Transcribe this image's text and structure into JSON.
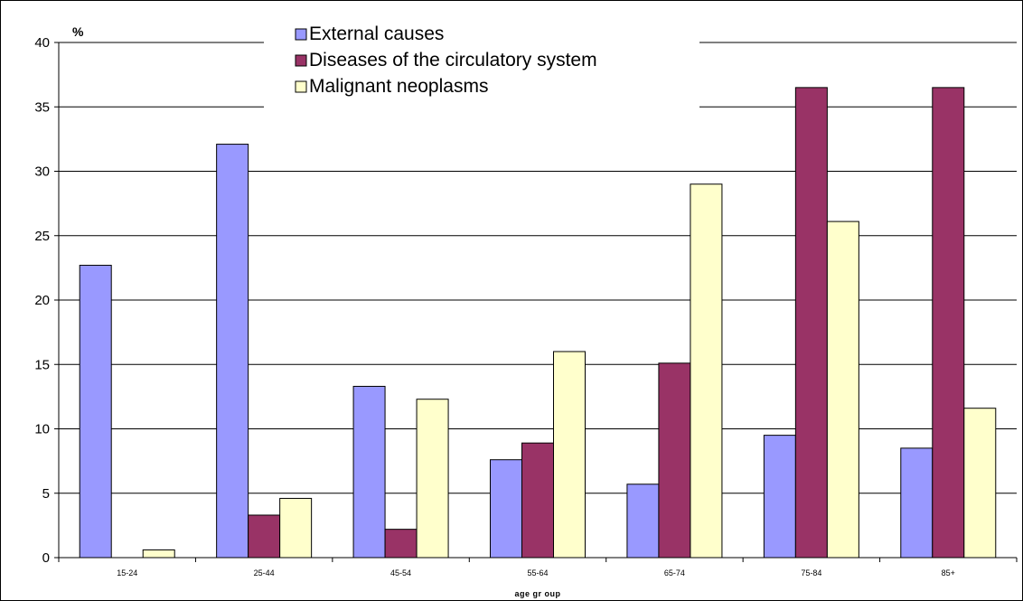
{
  "chart_data": {
    "type": "bar",
    "title": "",
    "ylabel": "%",
    "xlabel": "age gr oup",
    "ylim": [
      0,
      40
    ],
    "yticks": [
      0,
      5,
      10,
      15,
      20,
      25,
      30,
      35,
      40
    ],
    "categories": [
      "15-24",
      "25-44",
      "45-54",
      "55-64",
      "65-74",
      "75-84",
      "85+"
    ],
    "series": [
      {
        "name": "External causes",
        "color": "#9999ff",
        "values": [
          22.7,
          32.1,
          13.3,
          7.6,
          5.7,
          9.5,
          8.5
        ]
      },
      {
        "name": "Diseases of the circulatory system",
        "color": "#993366",
        "values": [
          0,
          3.3,
          2.2,
          8.9,
          15.1,
          36.5,
          36.5
        ]
      },
      {
        "name": "Malignant neoplasms",
        "color": "#ffffcc",
        "values": [
          0.6,
          4.6,
          12.3,
          16.0,
          29.0,
          26.1,
          11.6
        ]
      }
    ],
    "grid": true,
    "legend_position": "top"
  }
}
